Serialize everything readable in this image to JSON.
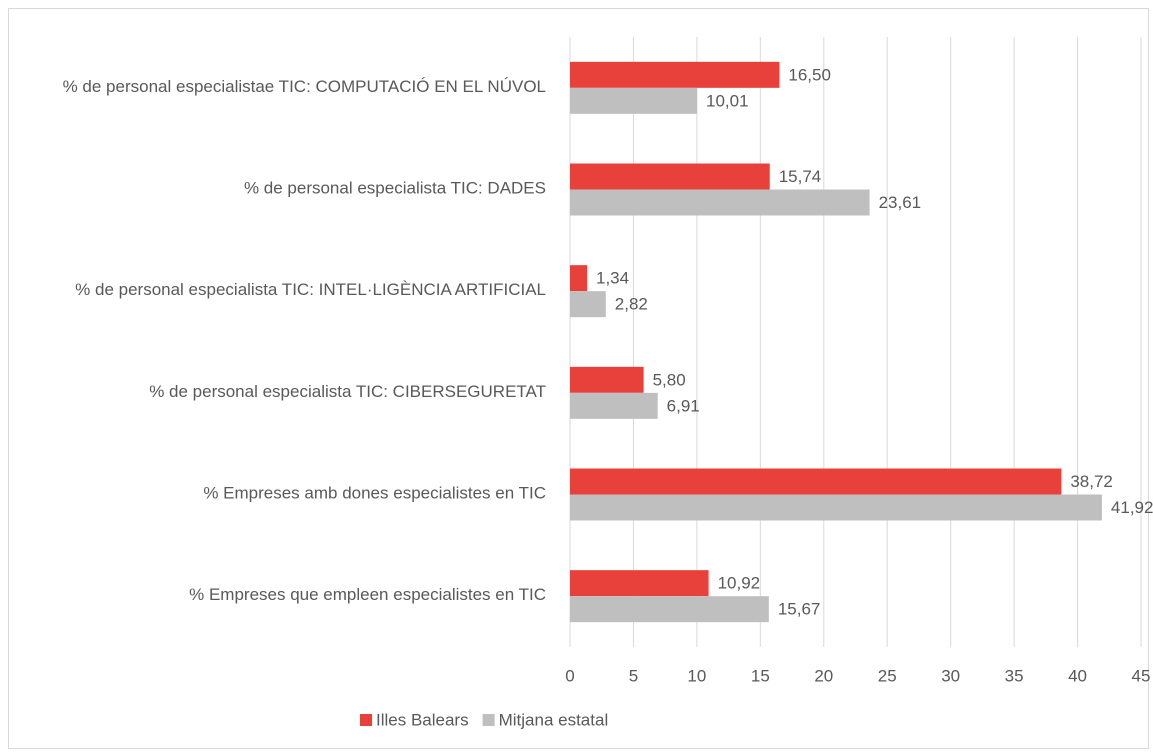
{
  "chart_data": {
    "type": "hbar",
    "categories": [
      "% de personal  especialistae TIC: COMPUTACIÓ EN EL NÚVOL",
      "% de personal  especialista TIC: DADES",
      "% de personal  especialista TIC: INTEL·LIGÈNCIA ARTIFICIAL",
      "% de personal  especialista TIC: CIBERSEGURETAT",
      "% Empreses amb dones especialistes en TIC",
      "% Empreses que empleen especialistes en TIC"
    ],
    "series": [
      {
        "name": "Illes Balears",
        "color": "#e8403a",
        "values": [
          16.5,
          15.74,
          1.34,
          5.8,
          38.72,
          10.92
        ],
        "value_labels": [
          "16,50",
          "15,74",
          "1,34",
          "5,80",
          "38,72",
          "10,92"
        ]
      },
      {
        "name": "Mitjana estatal",
        "color": "#bfbfbf",
        "values": [
          10.01,
          23.61,
          2.82,
          6.91,
          41.92,
          15.67
        ],
        "value_labels": [
          "10,01",
          "23,61",
          "2,82",
          "6,91",
          "41,92",
          "15,67"
        ]
      }
    ],
    "xlim": [
      0,
      45
    ],
    "xticks": [
      0,
      5,
      10,
      15,
      20,
      25,
      30,
      35,
      40,
      45
    ],
    "grid": true,
    "legend": "bottom"
  }
}
